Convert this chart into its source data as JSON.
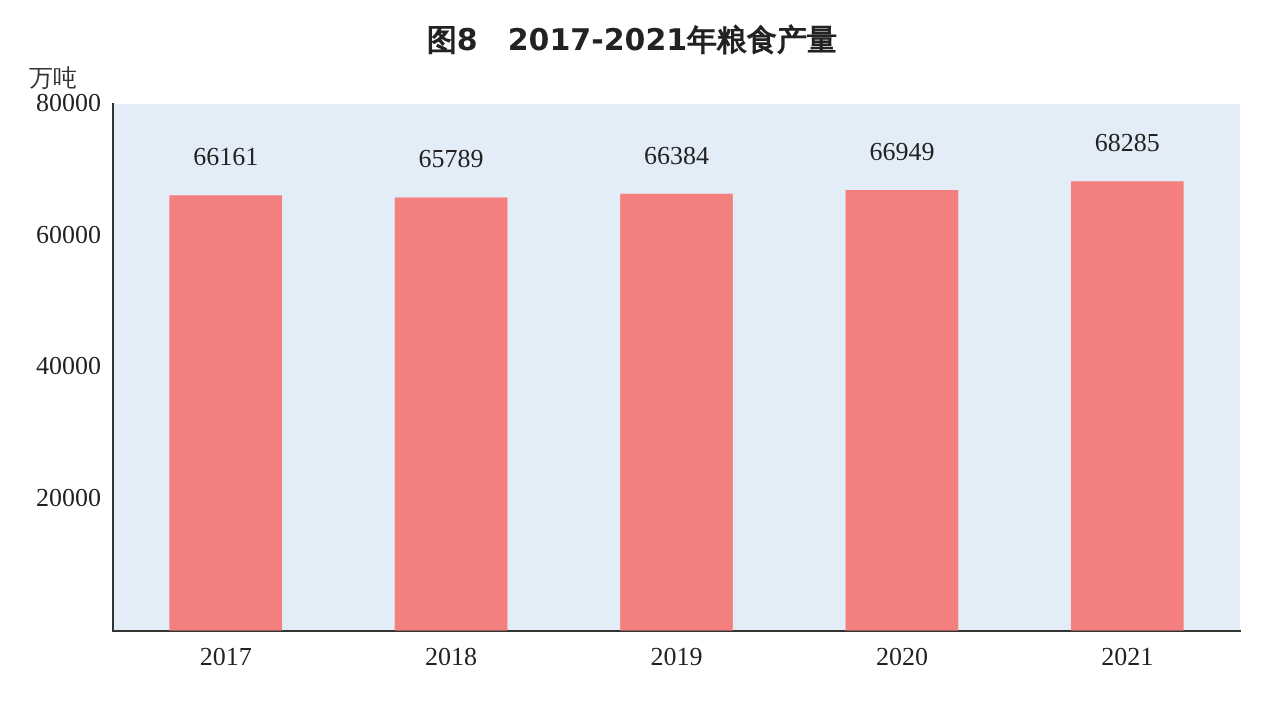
{
  "chart_data": {
    "type": "bar",
    "title": "图8　2017-2021年粮食产量",
    "ylabel": "万吨",
    "categories": [
      "2017",
      "2018",
      "2019",
      "2020",
      "2021"
    ],
    "values": [
      66161,
      65789,
      66384,
      66949,
      68285
    ],
    "color": "#f47f7f",
    "ylim": [
      0,
      80000
    ],
    "yticks": [
      {
        "value": 0,
        "label": null
      },
      20000,
      40000,
      60000,
      80000
    ],
    "grid": false,
    "data_labels": true,
    "legend": false
  }
}
